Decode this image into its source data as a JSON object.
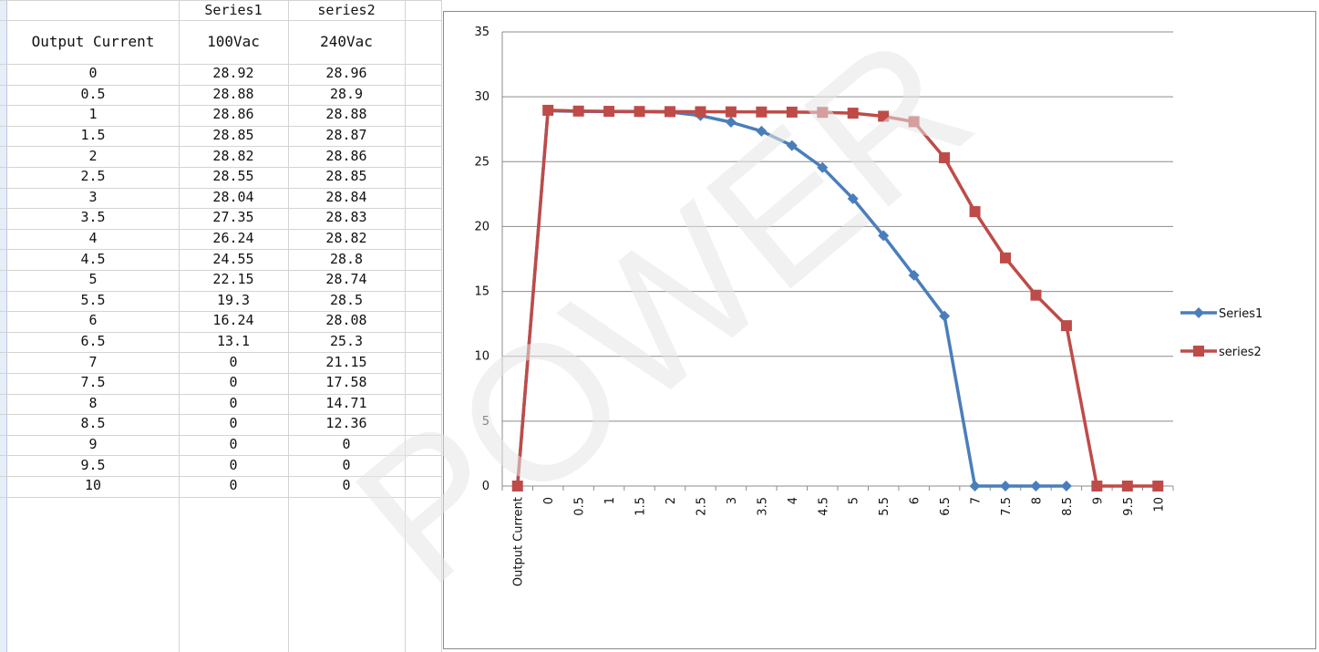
{
  "sheet": {
    "header_row": [
      "",
      "Series1",
      "series2"
    ],
    "sub_header": [
      "Output Current",
      "100Vac",
      "240Vac"
    ],
    "rows": [
      [
        "0",
        "28.92",
        "28.96"
      ],
      [
        "0.5",
        "28.88",
        "28.9"
      ],
      [
        "1",
        "28.86",
        "28.88"
      ],
      [
        "1.5",
        "28.85",
        "28.87"
      ],
      [
        "2",
        "28.82",
        "28.86"
      ],
      [
        "2.5",
        "28.55",
        "28.85"
      ],
      [
        "3",
        "28.04",
        "28.84"
      ],
      [
        "3.5",
        "27.35",
        "28.83"
      ],
      [
        "4",
        "26.24",
        "28.82"
      ],
      [
        "4.5",
        "24.55",
        "28.8"
      ],
      [
        "5",
        "22.15",
        "28.74"
      ],
      [
        "5.5",
        "19.3",
        "28.5"
      ],
      [
        "6",
        "16.24",
        "28.08"
      ],
      [
        "6.5",
        "13.1",
        "25.3"
      ],
      [
        "7",
        "0",
        "21.15"
      ],
      [
        "7.5",
        "0",
        "17.58"
      ],
      [
        "8",
        "0",
        "14.71"
      ],
      [
        "8.5",
        "0",
        "12.36"
      ],
      [
        "9",
        "0",
        "0"
      ],
      [
        "9.5",
        "0",
        "0"
      ],
      [
        "10",
        "0",
        "0"
      ]
    ]
  },
  "watermark": {
    "text": "POWER",
    "color": "#e6e6e6"
  },
  "chart_data": {
    "type": "line",
    "categories": [
      "Output Current",
      "0",
      "0.5",
      "1",
      "1.5",
      "2",
      "2.5",
      "3",
      "3.5",
      "4",
      "4.5",
      "5",
      "5.5",
      "6",
      "6.5",
      "7",
      "7.5",
      "8",
      "8.5",
      "9",
      "9.5",
      "10"
    ],
    "series": [
      {
        "name": "Series1",
        "color": "#4a7ebb",
        "marker": "diamond",
        "values": [
          0,
          28.92,
          28.88,
          28.86,
          28.85,
          28.82,
          28.55,
          28.04,
          27.35,
          26.24,
          24.55,
          22.15,
          19.3,
          16.24,
          13.1,
          0,
          0,
          0,
          0,
          null,
          null,
          null
        ]
      },
      {
        "name": "series2",
        "color": "#be4b48",
        "marker": "square",
        "values": [
          0,
          28.96,
          28.9,
          28.88,
          28.87,
          28.86,
          28.85,
          28.84,
          28.83,
          28.82,
          28.8,
          28.74,
          28.5,
          28.08,
          25.3,
          21.15,
          17.58,
          14.71,
          12.36,
          0,
          0,
          0
        ]
      }
    ],
    "y_ticks": [
      "0",
      "5",
      "10",
      "15",
      "20",
      "25",
      "30",
      "35"
    ],
    "ylim": [
      0,
      35
    ],
    "grid": true,
    "legend_position": "right"
  }
}
